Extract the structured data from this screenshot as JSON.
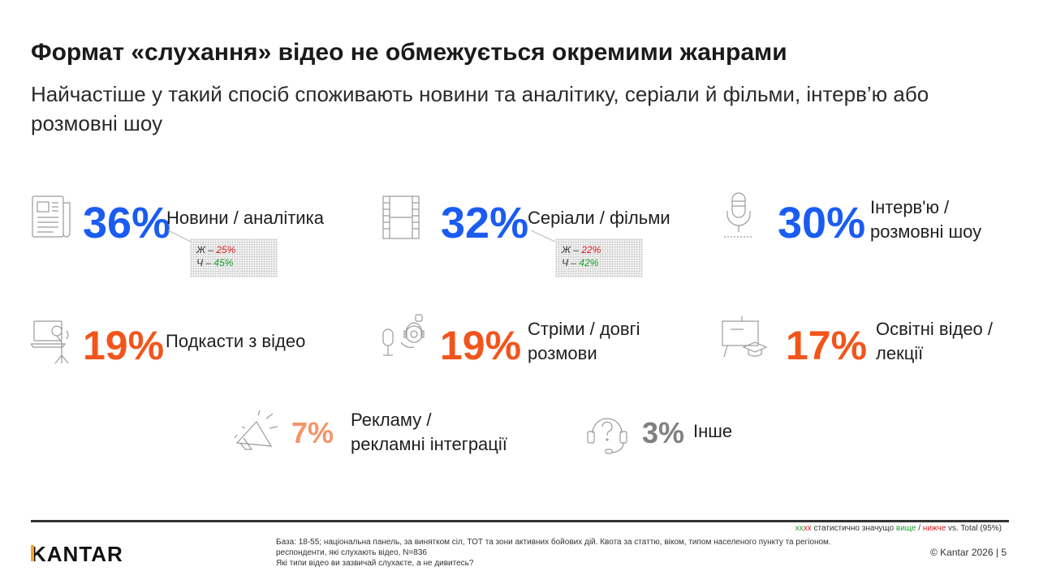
{
  "header": {
    "title": "Формат «слухання» відео не обмежується окремими жанрами",
    "subtitle": "Найчастіше у такий спосіб споживають новини та аналітику, серіали й фільми, інтерв’ю або розмовні шоу"
  },
  "items": [
    {
      "pct": "36%",
      "label1": "Новини / аналітика",
      "label2": "",
      "icon": "newspaper-icon",
      "color": "#1a5cf2"
    },
    {
      "pct": "32%",
      "label1": "Серіали / фільми",
      "label2": "",
      "icon": "film-strip-icon",
      "color": "#1a5cf2"
    },
    {
      "pct": "30%",
      "label1": "Інтерв'ю /",
      "label2": "розмовні шоу",
      "icon": "microphone-icon",
      "color": "#1a5cf2"
    },
    {
      "pct": "19%",
      "label1": "Подкасти з відео",
      "label2": "",
      "icon": "podcast-laptop-icon",
      "color": "#f2551c"
    },
    {
      "pct": "19%",
      "label1": "Стріми / довгі",
      "label2": "розмови",
      "icon": "streamer-icon",
      "color": "#f2551c"
    },
    {
      "pct": "17%",
      "label1": "Освітні відео /",
      "label2": "лекції",
      "icon": "education-board-icon",
      "color": "#f2551c"
    },
    {
      "pct": "7%",
      "label1": "Рекламу /",
      "label2": "рекламні інтеграції",
      "icon": "megaphone-icon",
      "color": "#f5946a"
    },
    {
      "pct": "3%",
      "label1": "Інше",
      "label2": "",
      "icon": "question-headset-icon",
      "color": "#808080"
    }
  ],
  "callouts": [
    {
      "f_label": "Ж – ",
      "f_value": "25%",
      "m_label": "Ч – ",
      "m_value": "45%"
    },
    {
      "f_label": "Ж – ",
      "f_value": "22%",
      "m_label": "Ч – ",
      "m_value": "42%"
    }
  ],
  "footer": {
    "legend_xx1": "xx",
    "legend_xx2": "xx",
    "legend_text1": " статистично значущо ",
    "legend_higher": "вище",
    "legend_sep": " / ",
    "legend_lower": "нижче",
    "legend_text2": " vs. Total (95%)",
    "base_line1": "База: 18-55; національна панель, за винятком сіл, ТОТ та зони активних бойових дій. Квота за статтю, віком, типом населеного пункту та регіоном.",
    "base_line2": "респонденти, які слухають відео, N=836",
    "base_line3": "Які типи відео ви зазвичай слухаєте, а не дивитесь?",
    "logo": "KANTAR",
    "copyright": "© Kantar 2026 | 5"
  },
  "colors": {
    "blue": "#1a5cf2",
    "orange": "#f2551c",
    "light_orange": "#f5946a",
    "grey": "#808080",
    "higher_green": "#1aa12a",
    "lower_red": "#d41e1e",
    "logo_accent": "#f5a623"
  }
}
